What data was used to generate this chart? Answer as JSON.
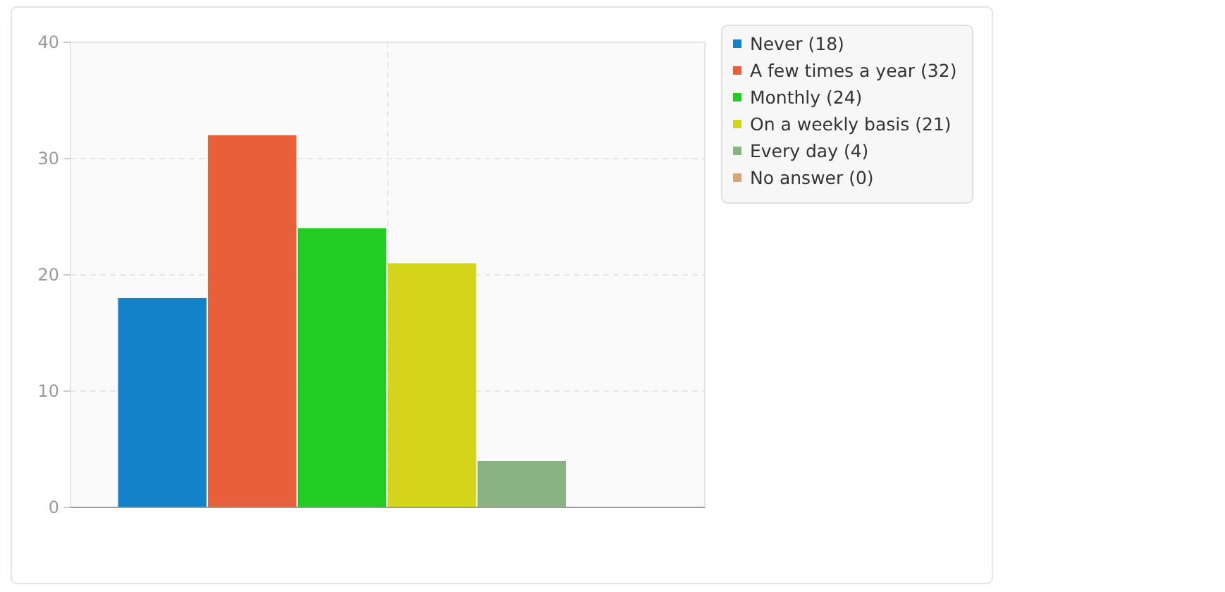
{
  "chart_data": {
    "type": "bar",
    "categories": [
      null
    ],
    "series": [
      {
        "name": "Never (18)",
        "color": "#1482c8",
        "values": [
          18
        ]
      },
      {
        "name": "A few times a year (32)",
        "color": "#e8603a",
        "values": [
          32
        ]
      },
      {
        "name": "Monthly (24)",
        "color": "#22cc22",
        "values": [
          24
        ]
      },
      {
        "name": "On a weekly basis (21)",
        "color": "#d4d41c",
        "values": [
          21
        ]
      },
      {
        "name": "Every day (4)",
        "color": "#8ab383",
        "values": [
          4
        ]
      },
      {
        "name": "No answer (0)",
        "color": "#d2a679",
        "values": [
          0
        ]
      }
    ],
    "ylim": [
      0,
      40
    ],
    "yticks": [
      0,
      10,
      20,
      30,
      40
    ],
    "grid": true,
    "legend": "top right"
  }
}
